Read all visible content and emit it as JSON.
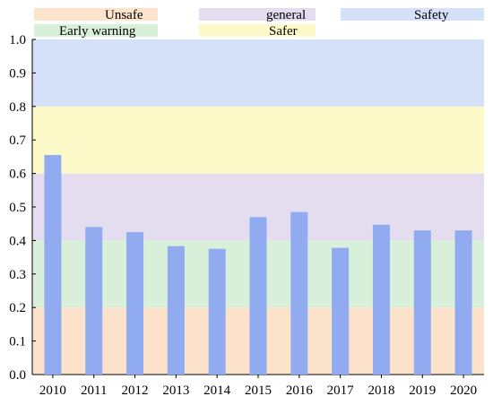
{
  "chart_data": {
    "type": "bar",
    "categories": [
      "2010",
      "2011",
      "2012",
      "2013",
      "2014",
      "2015",
      "2016",
      "2017",
      "2018",
      "2019",
      "2020"
    ],
    "values": [
      0.655,
      0.44,
      0.425,
      0.383,
      0.375,
      0.47,
      0.485,
      0.378,
      0.447,
      0.43,
      0.43
    ],
    "bar_color": "#90abef",
    "ylim": [
      0,
      1.0
    ],
    "yticks": [
      "0.0",
      "0.1",
      "0.2",
      "0.3",
      "0.4",
      "0.5",
      "0.6",
      "0.7",
      "0.8",
      "0.9",
      "1.0"
    ],
    "ytick_values": [
      0,
      0.1,
      0.2,
      0.3,
      0.4,
      0.5,
      0.6,
      0.7,
      0.8,
      0.9,
      1.0
    ],
    "bands": [
      {
        "name": "Unsafe",
        "from": 0.0,
        "to": 0.2,
        "color": "#fde3cb"
      },
      {
        "name": "Early warning",
        "from": 0.2,
        "to": 0.4,
        "color": "#d8f0d9"
      },
      {
        "name": "general",
        "from": 0.4,
        "to": 0.6,
        "color": "#e3ddef"
      },
      {
        "name": "Safer",
        "from": 0.6,
        "to": 0.8,
        "color": "#fdfac9"
      },
      {
        "name": "Safety",
        "from": 0.8,
        "to": 1.0,
        "color": "#d4e1f8"
      }
    ],
    "legend": [
      {
        "label": "Unsafe",
        "color": "#fde3cb"
      },
      {
        "label": "general",
        "color": "#e3ddef"
      },
      {
        "label": "Safety",
        "color": "#d4e1f8"
      },
      {
        "label": "Early warning",
        "color": "#d8f0d9"
      },
      {
        "label": "Safer",
        "color": "#fdfac9"
      }
    ],
    "legend_position": "top",
    "grid": false
  }
}
